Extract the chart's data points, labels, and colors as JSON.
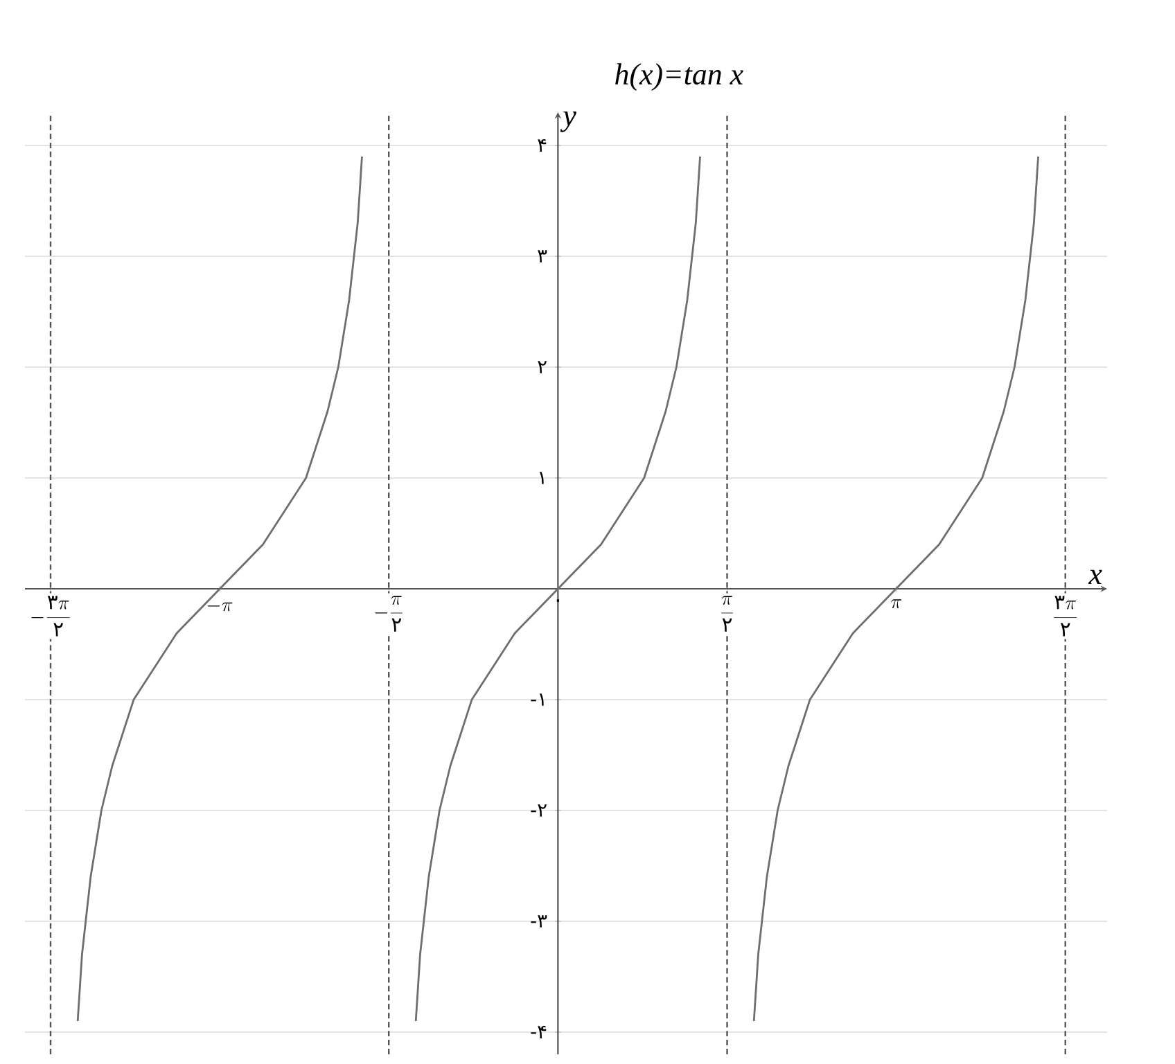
{
  "chart_data": {
    "type": "line",
    "title": "h(x)=tan x",
    "xlabel": "x",
    "ylabel": "y",
    "series": [
      {
        "color": "#6e6e6e",
        "x": [
          -4.46,
          -4.42,
          -4.34,
          -4.24,
          -4.14,
          -3.94,
          -3.74,
          -3.54,
          -3.34,
          -3.14,
          -2.94,
          -2.74,
          -2.54,
          -2.34,
          -2.14,
          -2.04,
          -1.94,
          -1.86,
          -1.82
        ],
        "values": [
          -3.9,
          -3.3,
          -2.6,
          -2.0,
          -1.6,
          -1.0,
          -0.7,
          -0.4,
          -0.2,
          0,
          0.2,
          0.4,
          0.7,
          1.0,
          1.6,
          2.0,
          2.6,
          3.3,
          3.9
        ]
      },
      {
        "color": "#6e6e6e",
        "x": [
          -1.32,
          -1.28,
          -1.2,
          -1.1,
          -1.0,
          -0.8,
          -0.6,
          -0.4,
          -0.2,
          0,
          0.2,
          0.4,
          0.6,
          0.8,
          1.0,
          1.1,
          1.2,
          1.28,
          1.32
        ],
        "values": [
          -3.9,
          -3.3,
          -2.6,
          -2.0,
          -1.6,
          -1.0,
          -0.7,
          -0.4,
          -0.2,
          0,
          0.2,
          0.4,
          0.7,
          1.0,
          1.6,
          2.0,
          2.6,
          3.3,
          3.9
        ]
      },
      {
        "color": "#6e6e6e",
        "x": [
          1.82,
          1.86,
          1.94,
          2.04,
          2.14,
          2.34,
          2.54,
          2.74,
          2.94,
          3.14,
          3.34,
          3.54,
          3.74,
          3.94,
          4.14,
          4.24,
          4.34,
          4.42,
          4.46
        ],
        "values": [
          -3.9,
          -3.3,
          -2.6,
          -2.0,
          -1.6,
          -1.0,
          -0.7,
          -0.4,
          -0.2,
          0,
          0.2,
          0.4,
          0.7,
          1.0,
          1.6,
          2.0,
          2.6,
          3.3,
          3.9
        ]
      }
    ],
    "xlim": [
      -4.95,
      5.1
    ],
    "ylim": [
      -4.2,
      4.3
    ],
    "xticks": [
      {
        "value": -4.712,
        "label": "-\\frac{\\mbox{۳}\\pi}{\\mbox{۲}}"
      },
      {
        "value": -3.142,
        "label": "-\\pi"
      },
      {
        "value": -1.571,
        "label": "-\\frac{\\pi}{\\mbox{۲}}"
      },
      {
        "value": 0,
        "label": "\\mbox{۰}"
      },
      {
        "value": 1.571,
        "label": "\\frac{\\pi}{\\mbox{۲}}"
      },
      {
        "value": 3.142,
        "label": "\\pi"
      },
      {
        "value": 4.712,
        "label": "\\frac{\\mbox{۳}\\pi}{\\mbox{۲}}"
      }
    ],
    "yticks": [
      {
        "value": -4,
        "label": "-۴"
      },
      {
        "value": -3,
        "label": "-۳"
      },
      {
        "value": -2,
        "label": "-۲"
      },
      {
        "value": -1,
        "label": "-۱"
      },
      {
        "value": 1,
        "label": "۱"
      },
      {
        "value": 2,
        "label": "۲"
      },
      {
        "value": 3,
        "label": "۳"
      },
      {
        "value": 4,
        "label": "۴"
      }
    ],
    "grid": "y",
    "marker": "none",
    "line_style": "solid",
    "ref_lines": [
      {
        "axis": "x",
        "value": -4.712,
        "color": "#555555",
        "line_style": "dashed"
      },
      {
        "axis": "x",
        "value": -1.571,
        "color": "#555555",
        "line_style": "dashed"
      },
      {
        "axis": "x",
        "value": 1.571,
        "color": "#555555",
        "line_style": "dashed"
      },
      {
        "axis": "x",
        "value": 4.712,
        "color": "#555555",
        "line_style": "dashed"
      }
    ]
  }
}
